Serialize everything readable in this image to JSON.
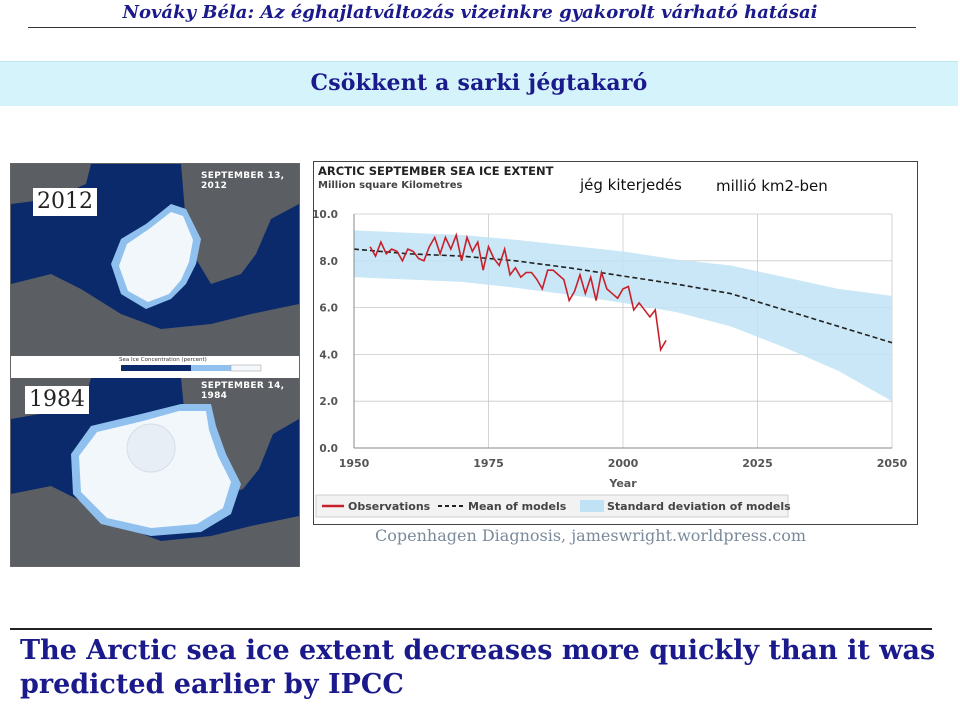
{
  "header": {
    "title": "Nováky Béla: Az éghajlatváltozás vizeinkre gyakorolt várható hatásai"
  },
  "banner": {
    "title": "Csökkent a sarki jégtakaró"
  },
  "maps": {
    "top_year": "2012",
    "top_date": "SEPTEMBER 13, 2012",
    "bottom_year": "1984",
    "bottom_date": "SEPTEMBER 14, 1984",
    "concentration_label": "Sea Ice Concentration (percent)",
    "colors": {
      "ocean": "#0a2a6b",
      "land": "#5b5e63",
      "ice": "#f2f7fc",
      "ice_edge": "#8fc0ee"
    }
  },
  "annotations": {
    "ice_extent_hu": "jég kiterjedés",
    "unit_hu": "millió km2-ben"
  },
  "chart_data": {
    "type": "line",
    "title": "ARCTIC SEPTEMBER SEA ICE EXTENT",
    "subtitle": "Million square Kilometres",
    "xlabel": "Year",
    "ylabel": "",
    "xlim": [
      1950,
      2050
    ],
    "ylim": [
      0,
      10
    ],
    "x_ticks": [
      "1950",
      "1975",
      "2000",
      "2025",
      "2050"
    ],
    "y_ticks": [
      "0.0",
      "2.0",
      "4.0",
      "6.0",
      "8.0",
      "10.0"
    ],
    "grid": true,
    "legend_position": "bottom",
    "colors": {
      "observations": "#c8202a",
      "mean": "#222222",
      "band": "#bfe3f5",
      "grid": "#c9c9c9"
    },
    "series": [
      {
        "name": "Observations",
        "style": "solid",
        "x": [
          1953,
          1954,
          1955,
          1956,
          1957,
          1958,
          1959,
          1960,
          1961,
          1962,
          1963,
          1964,
          1965,
          1966,
          1967,
          1968,
          1969,
          1970,
          1971,
          1972,
          1973,
          1974,
          1975,
          1976,
          1977,
          1978,
          1979,
          1980,
          1981,
          1982,
          1983,
          1984,
          1985,
          1986,
          1987,
          1988,
          1989,
          1990,
          1991,
          1992,
          1993,
          1994,
          1995,
          1996,
          1997,
          1998,
          1999,
          2000,
          2001,
          2002,
          2003,
          2004,
          2005,
          2006,
          2007,
          2008
        ],
        "values": [
          8.6,
          8.2,
          8.8,
          8.3,
          8.5,
          8.4,
          8.0,
          8.5,
          8.4,
          8.1,
          8.0,
          8.6,
          9.0,
          8.3,
          9.0,
          8.5,
          9.1,
          8.0,
          9.0,
          8.4,
          8.8,
          7.6,
          8.6,
          8.1,
          7.8,
          8.5,
          7.4,
          7.7,
          7.3,
          7.5,
          7.5,
          7.2,
          6.8,
          7.6,
          7.6,
          7.4,
          7.2,
          6.3,
          6.7,
          7.4,
          6.6,
          7.3,
          6.3,
          7.5,
          6.8,
          6.6,
          6.4,
          6.8,
          6.9,
          5.9,
          6.2,
          5.9,
          5.6,
          5.9,
          4.2,
          4.6
        ]
      },
      {
        "name": "Mean of models",
        "style": "dashed",
        "x": [
          1950,
          1960,
          1970,
          1980,
          1990,
          2000,
          2010,
          2020,
          2030,
          2040,
          2050
        ],
        "values": [
          8.5,
          8.3,
          8.2,
          8.0,
          7.7,
          7.35,
          7.0,
          6.6,
          5.9,
          5.2,
          4.5
        ]
      },
      {
        "name": "Standard deviation of models",
        "style": "band",
        "x": [
          1950,
          1960,
          1970,
          1980,
          1990,
          2000,
          2010,
          2020,
          2030,
          2040,
          2050
        ],
        "upper": [
          9.3,
          9.2,
          9.1,
          8.9,
          8.65,
          8.4,
          8.05,
          7.8,
          7.3,
          6.8,
          6.5
        ],
        "lower": [
          7.3,
          7.2,
          7.1,
          6.85,
          6.55,
          6.2,
          5.8,
          5.2,
          4.3,
          3.3,
          2.0
        ]
      }
    ]
  },
  "source": "Copenhagen Diagnosis, jameswright.worldpress.com",
  "caption": "The Arctic sea ice extent decreases more quickly than it was predicted earlier by IPCC"
}
